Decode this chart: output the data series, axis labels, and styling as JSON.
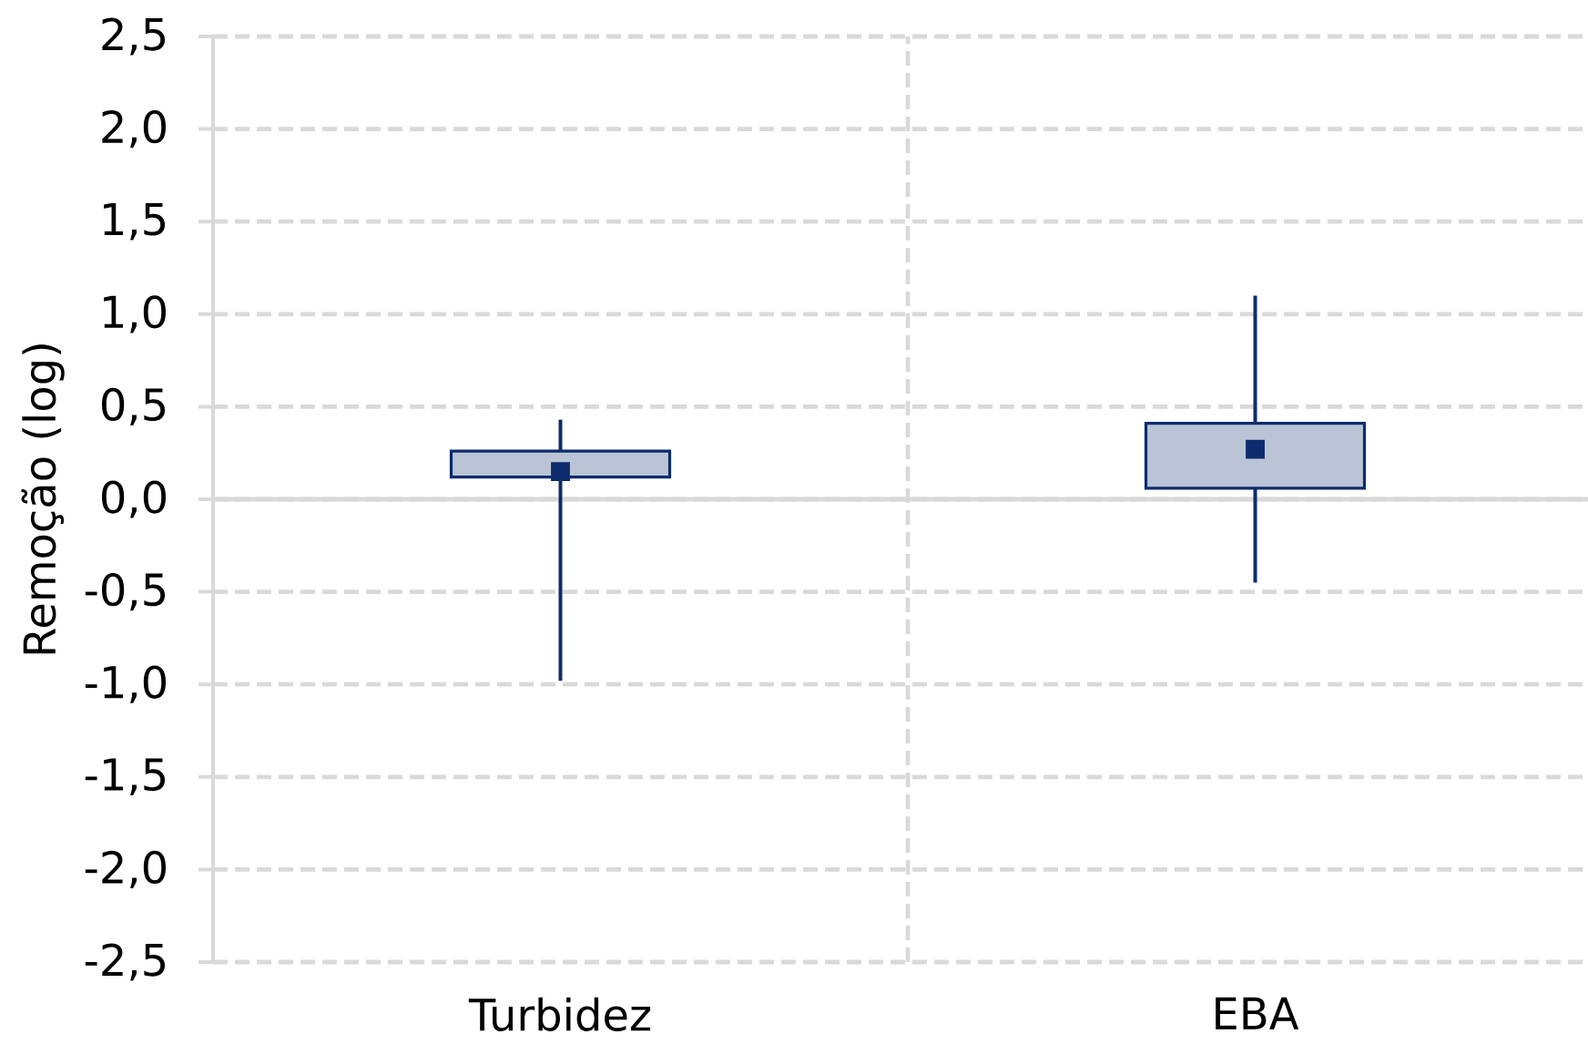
{
  "chart_data": {
    "type": "box",
    "ylabel": "Remoção (log)",
    "categories": [
      "Turbidez",
      "EBA"
    ],
    "color": "#0c2c6c",
    "boxes": [
      {
        "low": -0.98,
        "q1": 0.12,
        "median": 0.15,
        "q3": 0.26,
        "high": 0.43
      },
      {
        "low": -0.45,
        "q1": 0.06,
        "median": 0.27,
        "q3": 0.41,
        "high": 1.1
      }
    ],
    "ylim": [
      -2.5,
      2.5
    ],
    "yticks": [
      {
        "value": -2.5,
        "label": "-2,5"
      },
      {
        "value": -2.0,
        "label": "-2,0"
      },
      {
        "value": -1.5,
        "label": "-1,5"
      },
      {
        "value": -1.0,
        "label": "-1,0"
      },
      {
        "value": -0.5,
        "label": "-0,5"
      },
      {
        "value": 0,
        "label": "0,0"
      },
      {
        "value": 0.5,
        "label": "0,5"
      },
      {
        "value": 1.0,
        "label": "1,0"
      },
      {
        "value": 1.5,
        "label": "1,5"
      },
      {
        "value": 2.0,
        "label": "2,0"
      },
      {
        "value": 2.5,
        "label": "2,5"
      }
    ],
    "grid": true,
    "marker": "square"
  }
}
